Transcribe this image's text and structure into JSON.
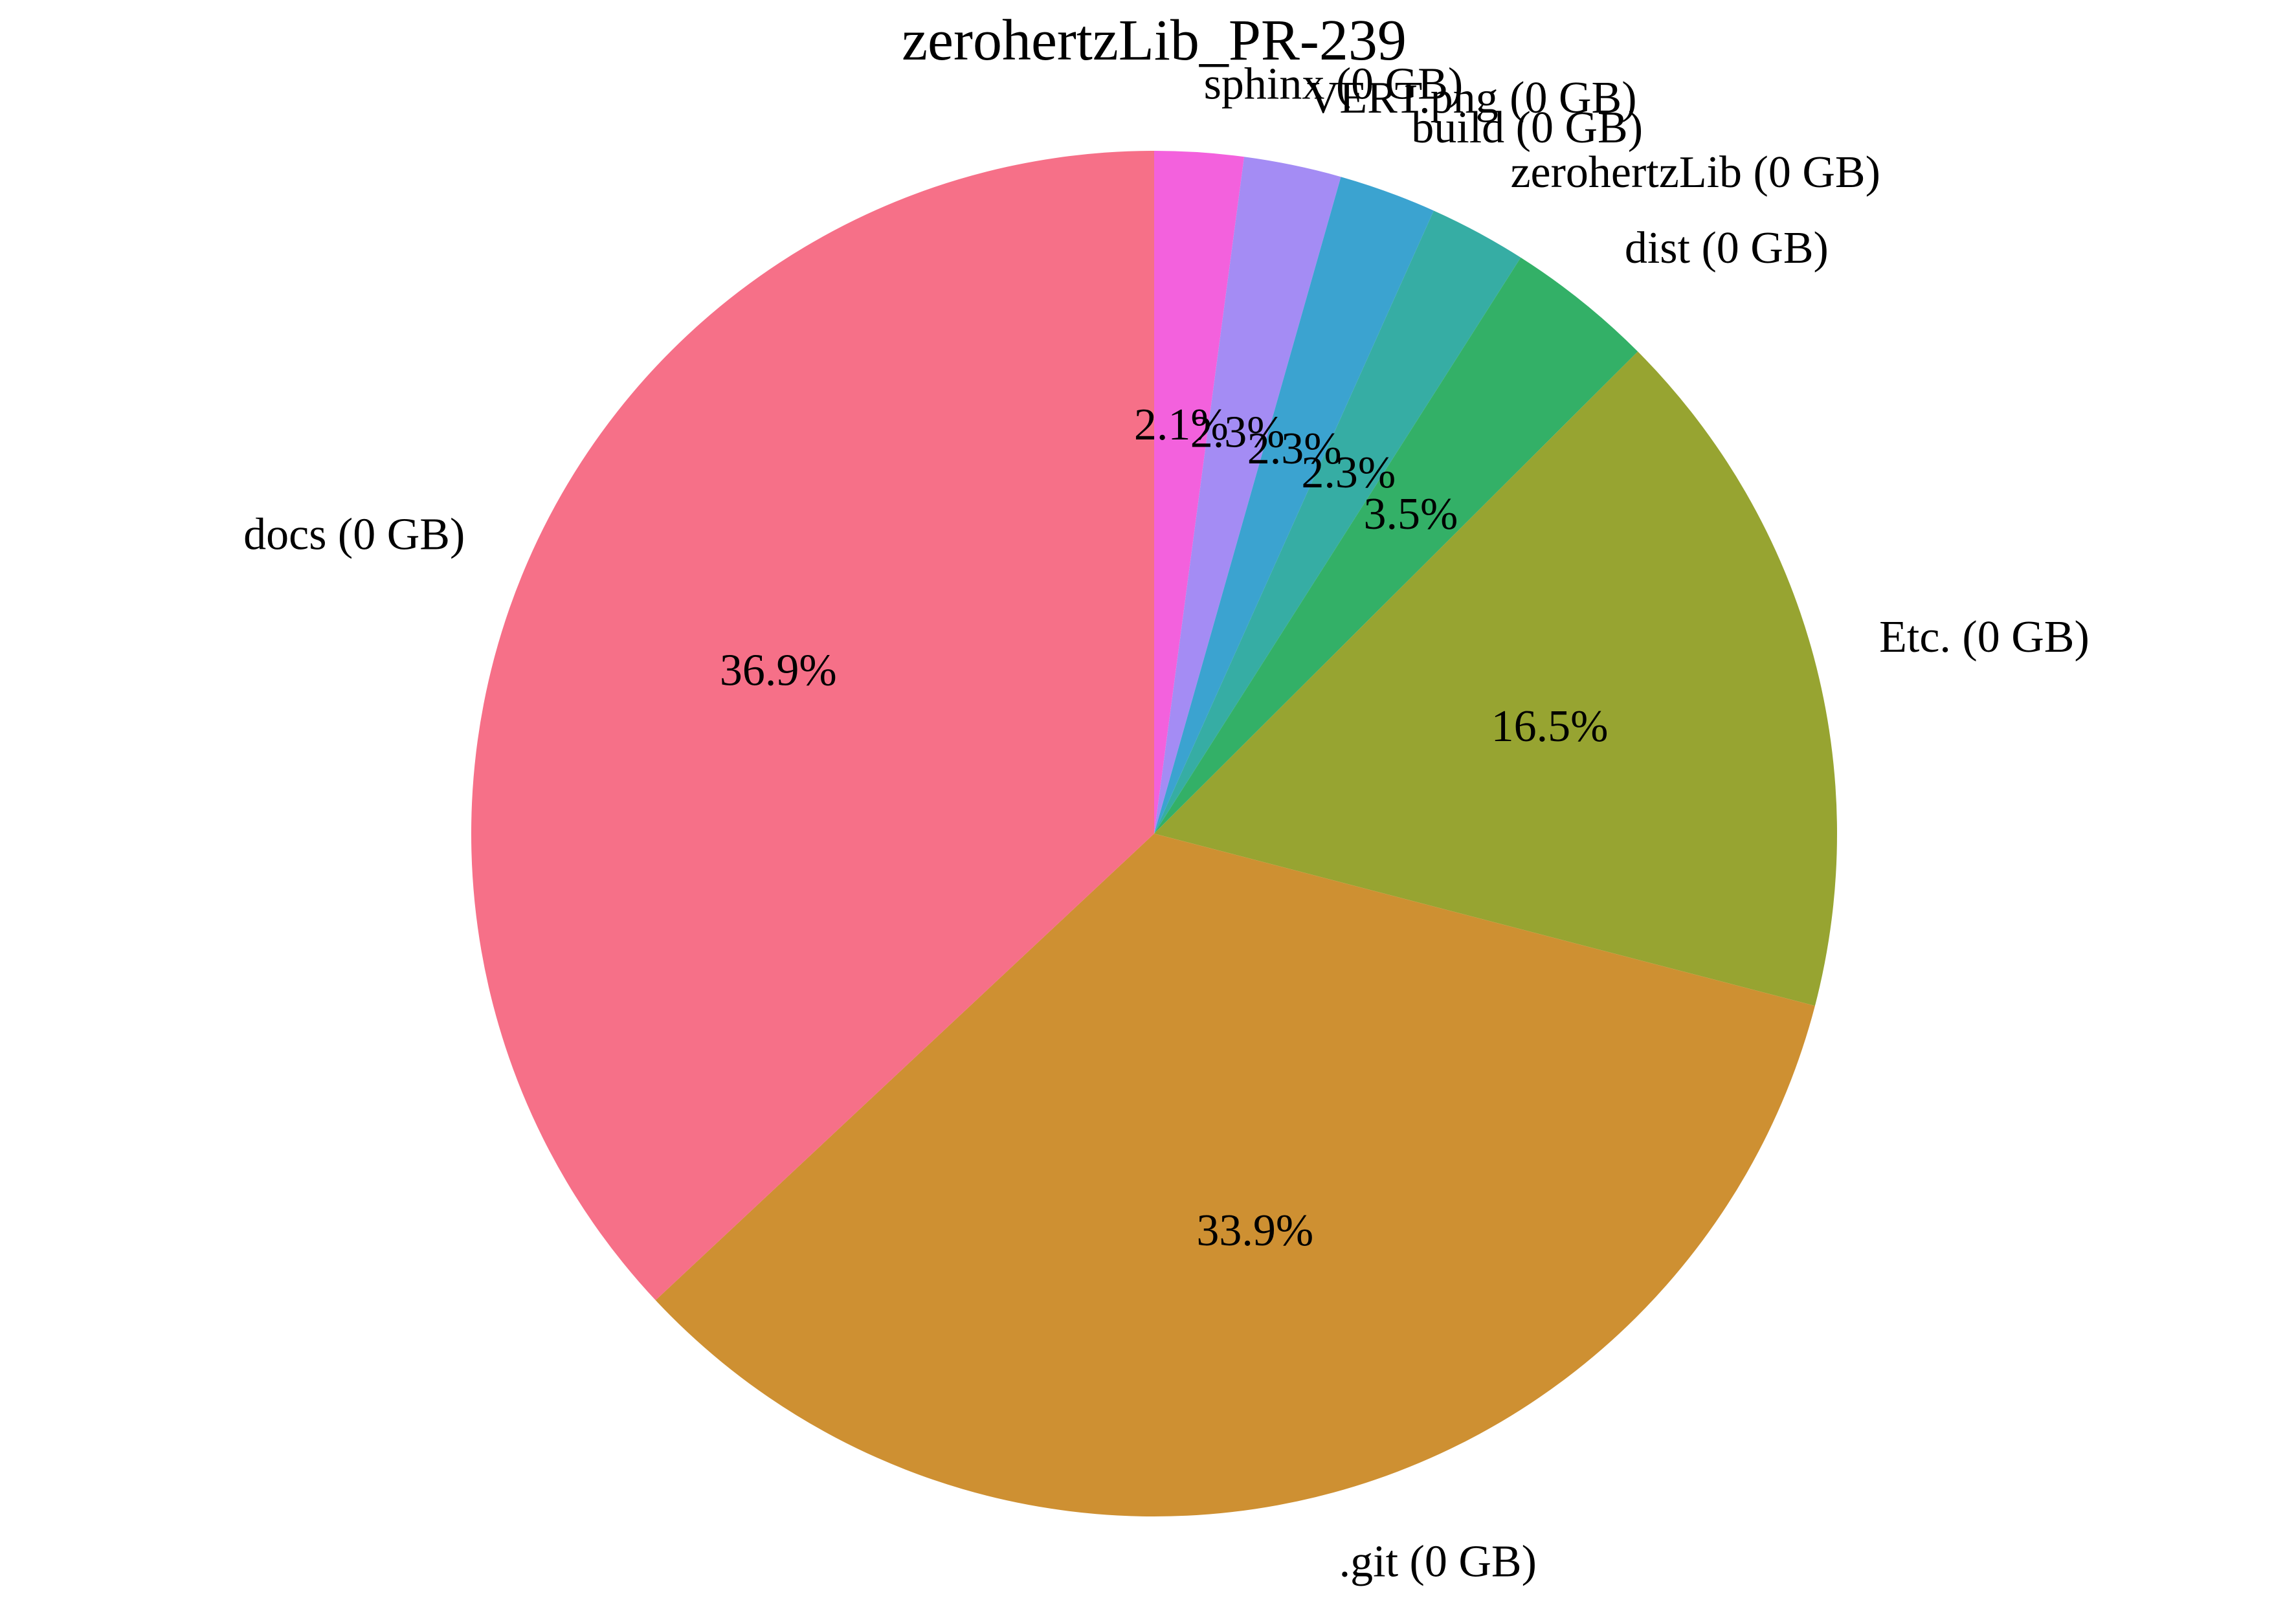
{
  "chart_data": {
    "type": "pie",
    "title": "zerohertzLib_PR-239",
    "start_angle_deg": 90,
    "direction": "clockwise",
    "slices": [
      {
        "label": "sphinx (0 GB)",
        "value": 2.1,
        "pct_label": "2.1%",
        "color": "#f361dd"
      },
      {
        "label": "VERT.png (0 GB)",
        "value": 2.3,
        "pct_label": "2.3%",
        "color": "#a48cf4"
      },
      {
        "label": "build (0 GB)",
        "value": 2.3,
        "pct_label": "2.3%",
        "color": "#3ba3d0"
      },
      {
        "label": "zerohertzLib (0 GB)",
        "value": 2.3,
        "pct_label": "2.3%",
        "color": "#36ada4"
      },
      {
        "label": "dist (0 GB)",
        "value": 3.5,
        "pct_label": "3.5%",
        "color": "#33b067"
      },
      {
        "label": "Etc. (0 GB)",
        "value": 16.5,
        "pct_label": "16.5%",
        "color": "#97a431"
      },
      {
        "label": ".git (0 GB)",
        "value": 33.9,
        "pct_label": "33.9%",
        "color": "#ce9032"
      },
      {
        "label": "docs (0 GB)",
        "value": 36.9,
        "pct_label": "36.9%",
        "color": "#f67088"
      }
    ]
  }
}
